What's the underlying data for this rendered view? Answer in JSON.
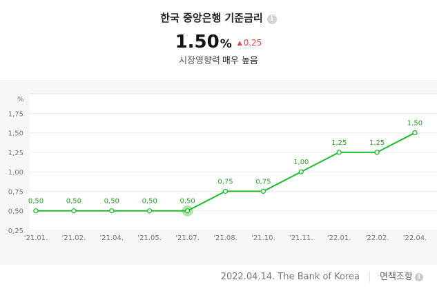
{
  "header": {
    "title": "한국 중앙은행 기준금리",
    "info_icon": "i",
    "rate": "1.50",
    "unit": "%",
    "change_icon": "triangle-up-icon",
    "change_arrow": "▲",
    "change": "0.25",
    "impact_label": "시장영향력",
    "impact_level": "매우 높음"
  },
  "colors": {
    "line": "#1dba2a",
    "highlight": "#8ee08b",
    "change_up": "#e8413f",
    "panel_bg": "#f6f7f9"
  },
  "chart_data": {
    "type": "line",
    "title": "",
    "xlabel": "",
    "ylabel": "%",
    "categories": [
      "'21.01.",
      "'21.02.",
      "'21.04.",
      "'21.05.",
      "'21.07.",
      "'21.08.",
      "'21.10.",
      "'21.11.",
      "'22.01.",
      "'22.02.",
      "'22.04."
    ],
    "series": [
      {
        "values": [
          0.5,
          0.5,
          0.5,
          0.5,
          0.5,
          0.75,
          0.75,
          1.0,
          1.25,
          1.25,
          1.5
        ]
      }
    ],
    "data_labels": [
      "0,50",
      "0,50",
      "0,50",
      "0,50",
      "0,50",
      "0,75",
      "0,75",
      "1,00",
      "1,25",
      "1,25",
      "1,50"
    ],
    "ylim": [
      0.25,
      2.0
    ],
    "yticks": [
      0.25,
      0.5,
      0.75,
      1.0,
      1.25,
      1.5,
      1.75
    ],
    "ytick_labels": [
      "0,25",
      "0,50",
      "0,75",
      "1,00",
      "1,25",
      "1,50",
      "1,75"
    ],
    "highlighted_index": 4,
    "grid": true,
    "legend": "none"
  },
  "footer": {
    "source": "2022.04.14. The Bank of Korea",
    "disclaimer": "면책조항",
    "disclaimer_icon": "i"
  }
}
